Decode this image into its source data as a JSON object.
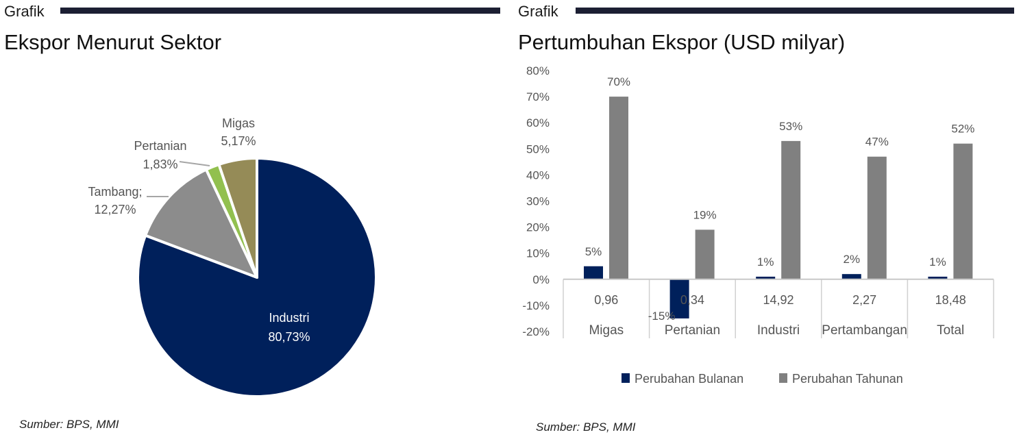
{
  "charts": [
    {
      "label": "Grafik",
      "title": "Ekspor Menurut Sektor",
      "source": "Sumber: BPS, MMI"
    },
    {
      "label": "Grafik",
      "title": "Pertumbuhan Ekspor (USD milyar)",
      "source": "Sumber: BPS, MMI"
    }
  ],
  "chart_data": [
    {
      "type": "pie",
      "title": "Ekspor Menurut Sektor",
      "slices": [
        {
          "label": "Industri",
          "value": 80.73,
          "display": "80,73%",
          "color": "#00205b"
        },
        {
          "label": "Tambang;",
          "value": 12.27,
          "display": "12,27%",
          "color": "#8c8c8c"
        },
        {
          "label": "Pertanian",
          "value": 1.83,
          "display": "1,83%",
          "color": "#92c04f"
        },
        {
          "label": "Migas",
          "value": 5.17,
          "display": "5,17%",
          "color": "#958b57"
        }
      ]
    },
    {
      "type": "bar",
      "title": "Pertumbuhan Ekspor (USD milyar)",
      "categories": [
        "Migas",
        "Pertanian",
        "Industri",
        "Pertambangan",
        "Total"
      ],
      "values_usd": [
        "0,96",
        "0,34",
        "14,92",
        "2,27",
        "18,48"
      ],
      "series": [
        {
          "name": "Perubahan Bulanan",
          "values": [
            5,
            -15,
            1,
            2,
            1
          ],
          "labels": [
            "5%",
            "-15%",
            "1%",
            "2%",
            "1%"
          ],
          "color": "#00205b"
        },
        {
          "name": "Perubahan Tahunan",
          "values": [
            70,
            19,
            53,
            47,
            52
          ],
          "labels": [
            "70%",
            "19%",
            "53%",
            "47%",
            "52%"
          ],
          "color": "#808080"
        }
      ],
      "ylim": [
        -20,
        80
      ],
      "yticks": [
        80,
        70,
        60,
        50,
        40,
        30,
        20,
        10,
        0,
        -10,
        -20
      ],
      "ytick_labels": [
        "80%",
        "70%",
        "60%",
        "50%",
        "40%",
        "30%",
        "20%",
        "10%",
        "0%",
        "-10%",
        "-20%"
      ],
      "legend": "bottom"
    }
  ]
}
